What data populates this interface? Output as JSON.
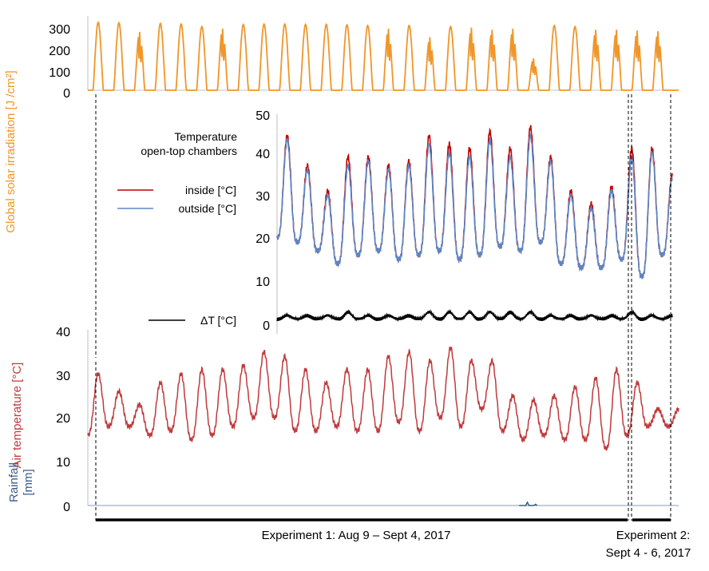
{
  "chart_data": [
    {
      "type": "line",
      "name": "solar-irradiation",
      "ylabel": "Global solar irradiation [J /cm²]",
      "ylim": [
        0,
        350
      ],
      "yticks": [
        0,
        100,
        200,
        300
      ],
      "x_unit": "days",
      "xlim": [
        0,
        28.5
      ],
      "peaks": [
        {
          "day": 0.5,
          "peak": 320
        },
        {
          "day": 1.5,
          "peak": 318
        },
        {
          "day": 2.5,
          "peak": 275
        },
        {
          "day": 3.5,
          "peak": 315
        },
        {
          "day": 4.5,
          "peak": 312
        },
        {
          "day": 5.5,
          "peak": 300
        },
        {
          "day": 6.5,
          "peak": 290
        },
        {
          "day": 7.5,
          "peak": 310
        },
        {
          "day": 8.5,
          "peak": 312
        },
        {
          "day": 9.5,
          "peak": 312
        },
        {
          "day": 10.5,
          "peak": 310
        },
        {
          "day": 11.5,
          "peak": 310
        },
        {
          "day": 12.5,
          "peak": 308
        },
        {
          "day": 13.5,
          "peak": 305
        },
        {
          "day": 14.5,
          "peak": 290
        },
        {
          "day": 15.5,
          "peak": 305
        },
        {
          "day": 16.5,
          "peak": 250
        },
        {
          "day": 17.5,
          "peak": 300
        },
        {
          "day": 18.5,
          "peak": 295
        },
        {
          "day": 19.5,
          "peak": 285
        },
        {
          "day": 20.5,
          "peak": 290
        },
        {
          "day": 21.5,
          "peak": 150
        },
        {
          "day": 22.5,
          "peak": 305
        },
        {
          "day": 23.5,
          "peak": 300
        },
        {
          "day": 24.5,
          "peak": 285
        },
        {
          "day": 25.5,
          "peak": 285
        },
        {
          "day": 26.5,
          "peak": 282
        },
        {
          "day": 27.5,
          "peak": 278
        }
      ]
    },
    {
      "type": "line",
      "name": "chamber-temperature",
      "title": "Temperature\nopen-top chambers",
      "ylim": [
        0,
        50
      ],
      "yticks": [
        0,
        10,
        20,
        30,
        40,
        50
      ],
      "xlim": [
        0,
        19.5
      ],
      "legend_placement": "left",
      "series": [
        {
          "name": "inside [°C]",
          "color": "#c00000"
        },
        {
          "name": "outside [°C]",
          "color": "#5a87c5"
        }
      ],
      "days": [
        {
          "max": 44,
          "min": 21,
          "max_in": 45
        },
        {
          "max": 37,
          "min": 20,
          "max_in": 38
        },
        {
          "max": 31,
          "min": 18,
          "max_in": 32
        },
        {
          "max": 38,
          "min": 15,
          "max_in": 40
        },
        {
          "max": 39,
          "min": 17,
          "max_in": 40
        },
        {
          "max": 37,
          "min": 18,
          "max_in": 38
        },
        {
          "max": 38,
          "min": 16,
          "max_in": 39
        },
        {
          "max": 43,
          "min": 17,
          "max_in": 45
        },
        {
          "max": 41,
          "min": 18,
          "max_in": 43
        },
        {
          "max": 40,
          "min": 16,
          "max_in": 42
        },
        {
          "max": 44,
          "min": 17,
          "max_in": 46
        },
        {
          "max": 40,
          "min": 19,
          "max_in": 42
        },
        {
          "max": 45,
          "min": 18,
          "max_in": 47
        },
        {
          "max": 39,
          "min": 20,
          "max_in": 40
        },
        {
          "max": 31,
          "min": 15,
          "max_in": 32
        },
        {
          "max": 28,
          "min": 14,
          "max_in": 29
        },
        {
          "max": 32,
          "min": 14,
          "max_in": 33
        },
        {
          "max": 40,
          "min": 16,
          "max_in": 42
        },
        {
          "max": 41,
          "min": 12,
          "max_in": 42
        },
        {
          "max": 35,
          "min": 17,
          "max_in": 36
        }
      ],
      "delta": {
        "name": "ΔT  [°C]",
        "color": "#000000",
        "baseline": 1.5,
        "spike_max": 5
      }
    },
    {
      "type": "line",
      "name": "air-temperature",
      "ylabel": "Air temperature [°C]",
      "ylim": [
        0,
        40
      ],
      "yticks": [
        0,
        10,
        20,
        30,
        40
      ],
      "color": "#c0393b",
      "xlim": [
        0,
        28.5
      ],
      "days": [
        {
          "max": 30,
          "min": 16
        },
        {
          "max": 26,
          "min": 18
        },
        {
          "max": 23,
          "min": 18
        },
        {
          "max": 28,
          "min": 16
        },
        {
          "max": 30,
          "min": 17
        },
        {
          "max": 31,
          "min": 15
        },
        {
          "max": 31,
          "min": 16
        },
        {
          "max": 32,
          "min": 18
        },
        {
          "max": 35,
          "min": 20
        },
        {
          "max": 34,
          "min": 20
        },
        {
          "max": 31,
          "min": 17
        },
        {
          "max": 28,
          "min": 17
        },
        {
          "max": 31,
          "min": 18
        },
        {
          "max": 31,
          "min": 17
        },
        {
          "max": 34,
          "min": 17
        },
        {
          "max": 35,
          "min": 19
        },
        {
          "max": 33,
          "min": 17
        },
        {
          "max": 36,
          "min": 20
        },
        {
          "max": 33,
          "min": 18
        },
        {
          "max": 33,
          "min": 22
        },
        {
          "max": 25,
          "min": 17
        },
        {
          "max": 24,
          "min": 15
        },
        {
          "max": 25,
          "min": 16
        },
        {
          "max": 27,
          "min": 15
        },
        {
          "max": 29,
          "min": 15
        },
        {
          "max": 31,
          "min": 13
        },
        {
          "max": 28,
          "min": 16
        },
        {
          "max": 22,
          "min": 18
        }
      ]
    },
    {
      "type": "line",
      "name": "rainfall",
      "ylabel": "Rainfall\n[mm]",
      "ylim": [
        0,
        10
      ],
      "yticks": [
        0
      ],
      "color": "#3a5a8c",
      "events": [
        {
          "day": 21.2,
          "value": 1
        },
        {
          "day": 21.6,
          "value": 0.4
        }
      ]
    }
  ],
  "experiments": [
    {
      "label": "Experiment 1: Aug 9 – Sept 4, 2017"
    },
    {
      "label": "Experiment 2:\nSept 4 - 6, 2017"
    }
  ],
  "colors": {
    "solar": "#f0962a",
    "inside": "#c00000",
    "outside": "#5a87c5",
    "air": "#c0393b",
    "rain_label": "#3a5a8c",
    "rain_line": "#7f9fbf",
    "solar_label": "#f0962a",
    "air_label": "#c0393b"
  }
}
